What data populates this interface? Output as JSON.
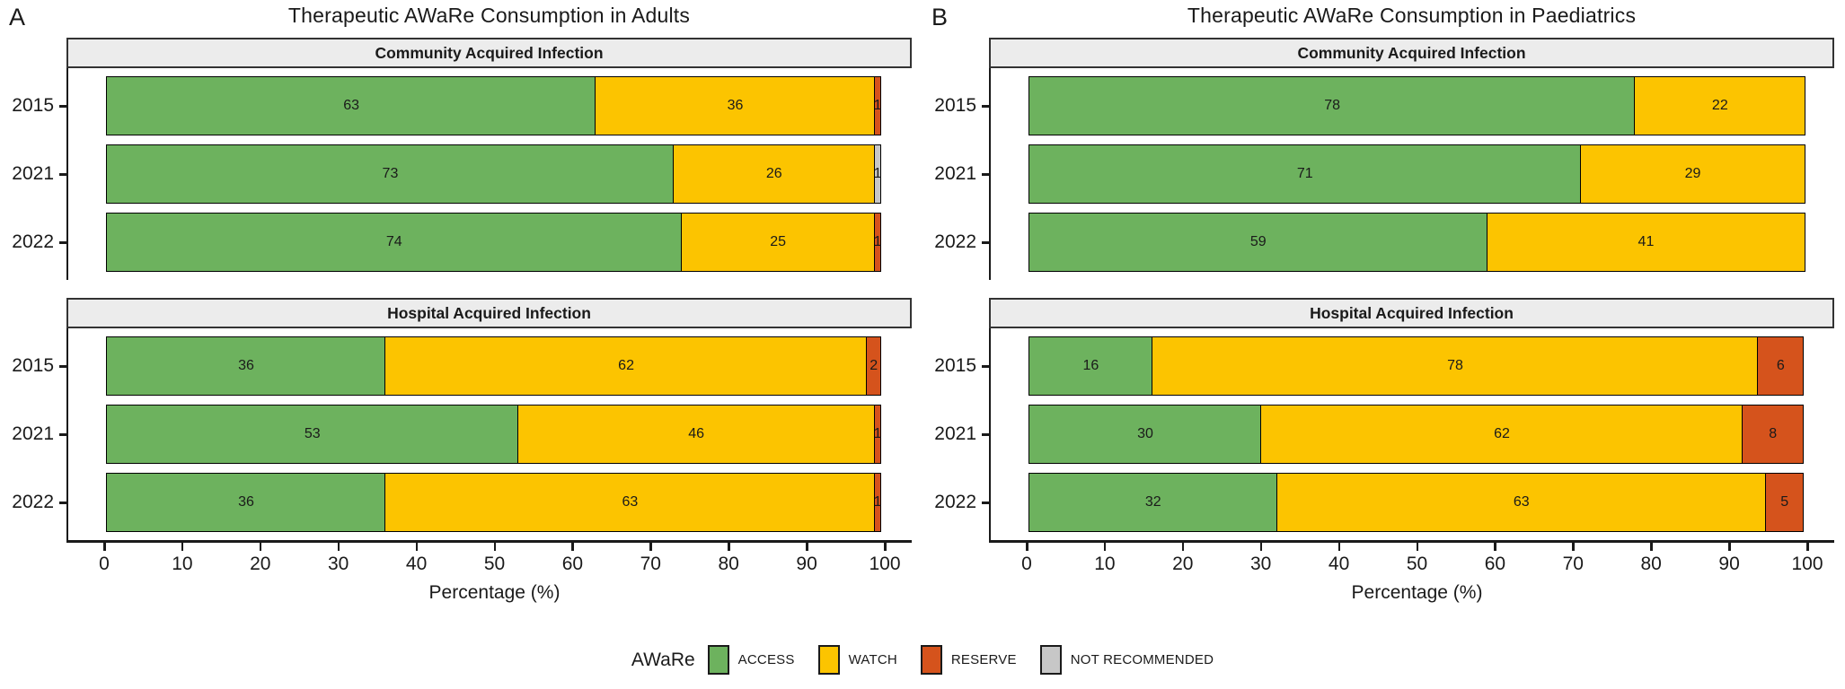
{
  "figure": {
    "axis": {
      "ticks": [
        0,
        10,
        20,
        30,
        40,
        50,
        60,
        70,
        80,
        90,
        100
      ],
      "xlabel": "Percentage (%)",
      "xlim": [
        0,
        100
      ]
    },
    "legend": {
      "title": "AWaRe",
      "items": [
        {
          "label": "ACCESS",
          "color": "#6db25e"
        },
        {
          "label": "WATCH",
          "color": "#fcc400"
        },
        {
          "label": "RESERVE",
          "color": "#d5531c"
        },
        {
          "label": "NOT RECOMMENDED",
          "color": "#c7c7c7"
        }
      ]
    },
    "colors": {
      "ACCESS": "#6db25e",
      "WATCH": "#fcc400",
      "RESERVE": "#d5531c",
      "NOT RECOMMENDED": "#c7c7c7",
      "strip_background": "#ececec",
      "axis": "#1a1a1a"
    }
  },
  "chart_data": [
    {
      "type": "bar",
      "stacked": true,
      "orientation": "horizontal",
      "panel_label": "A",
      "title": "Therapeutic AWaRe Consumption in Adults",
      "xlabel": "Percentage (%)",
      "xlim": [
        0,
        100
      ],
      "xticks": [
        0,
        10,
        20,
        30,
        40,
        50,
        60,
        70,
        80,
        90,
        100
      ],
      "legend_position": "bottom",
      "facets": [
        {
          "title": "Community Acquired Infection",
          "categories": [
            "2015",
            "2021",
            "2022"
          ],
          "series": [
            {
              "name": "ACCESS",
              "values": [
                63,
                73,
                74
              ]
            },
            {
              "name": "WATCH",
              "values": [
                36,
                26,
                25
              ]
            },
            {
              "name": "RESERVE",
              "values": [
                1,
                0,
                1
              ]
            },
            {
              "name": "NOT RECOMMENDED",
              "values": [
                0,
                1,
                0
              ]
            }
          ]
        },
        {
          "title": "Hospital Acquired Infection",
          "categories": [
            "2015",
            "2021",
            "2022"
          ],
          "series": [
            {
              "name": "ACCESS",
              "values": [
                36,
                53,
                36
              ]
            },
            {
              "name": "WATCH",
              "values": [
                62,
                46,
                63
              ]
            },
            {
              "name": "RESERVE",
              "values": [
                2,
                1,
                1
              ]
            },
            {
              "name": "NOT RECOMMENDED",
              "values": [
                0,
                0,
                0
              ]
            }
          ]
        }
      ]
    },
    {
      "type": "bar",
      "stacked": true,
      "orientation": "horizontal",
      "panel_label": "B",
      "title": "Therapeutic AWaRe Consumption in Paediatrics",
      "xlabel": "Percentage (%)",
      "xlim": [
        0,
        100
      ],
      "xticks": [
        0,
        10,
        20,
        30,
        40,
        50,
        60,
        70,
        80,
        90,
        100
      ],
      "legend_position": "bottom",
      "facets": [
        {
          "title": "Community Acquired Infection",
          "categories": [
            "2015",
            "2021",
            "2022"
          ],
          "series": [
            {
              "name": "ACCESS",
              "values": [
                78,
                71,
                59
              ]
            },
            {
              "name": "WATCH",
              "values": [
                22,
                29,
                41
              ]
            },
            {
              "name": "RESERVE",
              "values": [
                0,
                0,
                0
              ]
            },
            {
              "name": "NOT RECOMMENDED",
              "values": [
                0,
                0,
                0
              ]
            }
          ]
        },
        {
          "title": "Hospital Acquired Infection",
          "categories": [
            "2015",
            "2021",
            "2022"
          ],
          "series": [
            {
              "name": "ACCESS",
              "values": [
                16,
                30,
                32
              ]
            },
            {
              "name": "WATCH",
              "values": [
                78,
                62,
                63
              ]
            },
            {
              "name": "RESERVE",
              "values": [
                6,
                8,
                5
              ]
            },
            {
              "name": "NOT RECOMMENDED",
              "values": [
                0,
                0,
                0
              ]
            }
          ]
        }
      ]
    }
  ]
}
